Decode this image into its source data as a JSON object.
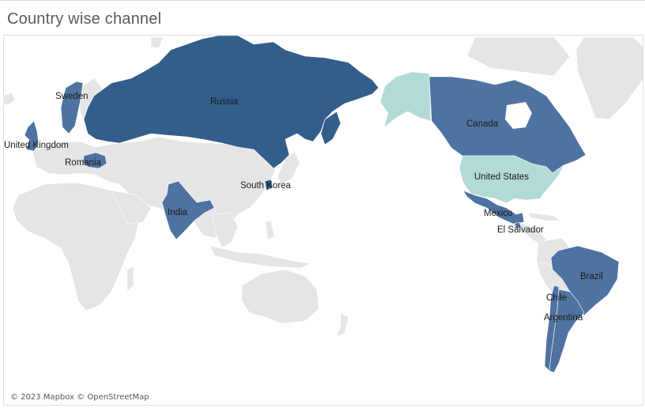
{
  "title": "Country wise channel",
  "colors": {
    "dark": "#335e8c",
    "mid": "#4e73a0",
    "light": "#b3dbd6",
    "land": "#e5e5e5",
    "landStroke": "#ffffff",
    "water": "#ffffff"
  },
  "countries": [
    {
      "name": "Russia",
      "label": "Russia",
      "shade": "dark"
    },
    {
      "name": "Sweden",
      "label": "Sweden",
      "shade": "mid"
    },
    {
      "name": "United Kingdom",
      "label": "United Kingdom",
      "shade": "mid"
    },
    {
      "name": "Romania",
      "label": "Romania",
      "shade": "mid"
    },
    {
      "name": "India",
      "label": "India",
      "shade": "mid"
    },
    {
      "name": "South Korea",
      "label": "South Korea",
      "shade": "dark"
    },
    {
      "name": "Canada",
      "label": "Canada",
      "shade": "mid"
    },
    {
      "name": "Alaska",
      "label": "",
      "shade": "light"
    },
    {
      "name": "United States",
      "label": "United States",
      "shade": "light"
    },
    {
      "name": "Mexico",
      "label": "Mexico",
      "shade": "mid"
    },
    {
      "name": "El Salvador",
      "label": "El Salvador",
      "shade": "mid"
    },
    {
      "name": "Brazil",
      "label": "Brazil",
      "shade": "mid"
    },
    {
      "name": "Chile",
      "label": "Chile",
      "shade": "mid"
    },
    {
      "name": "Argentina",
      "label": "Argentina",
      "shade": "mid"
    }
  ],
  "attribution": "© 2023 Mapbox © OpenStreetMap"
}
